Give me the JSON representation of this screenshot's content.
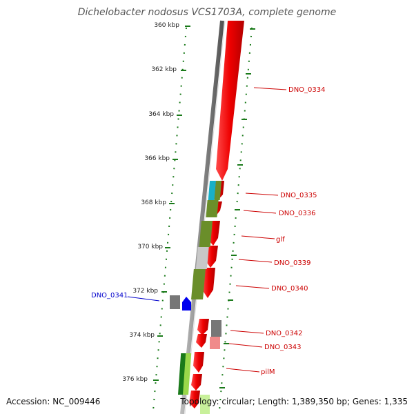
{
  "title": "Dichelobacter nodosus VCS1703A, complete genome",
  "footer": {
    "accession": "Accession: NC_009446",
    "topology": "Topology: circular; Length: 1,389,350 bp; Genes: 1,335"
  },
  "ruler": [
    "360 kbp",
    "362 kbp",
    "364 kbp",
    "366 kbp",
    "368 kbp",
    "370 kbp",
    "372 kbp",
    "374 kbp",
    "376 kbp"
  ],
  "gene_labels": [
    {
      "text": "DNO_0334",
      "color": "#cc0000"
    },
    {
      "text": "DNO_0335",
      "color": "#cc0000"
    },
    {
      "text": "DNO_0336",
      "color": "#cc0000"
    },
    {
      "text": "glf",
      "color": "#cc0000"
    },
    {
      "text": "DNO_0339",
      "color": "#cc0000"
    },
    {
      "text": "DNO_0340",
      "color": "#cc0000"
    },
    {
      "text": "DNO_0341",
      "color": "#0000cc"
    },
    {
      "text": "DNO_0342",
      "color": "#cc0000"
    },
    {
      "text": "DNO_0343",
      "color": "#cc0000"
    },
    {
      "text": "pilM",
      "color": "#cc0000"
    }
  ],
  "colors": {
    "forward_gene": "#ee0000",
    "reverse_gene": "#0000ee",
    "backbone": "#888888",
    "ruler_ticks": "#1a7a1a"
  }
}
